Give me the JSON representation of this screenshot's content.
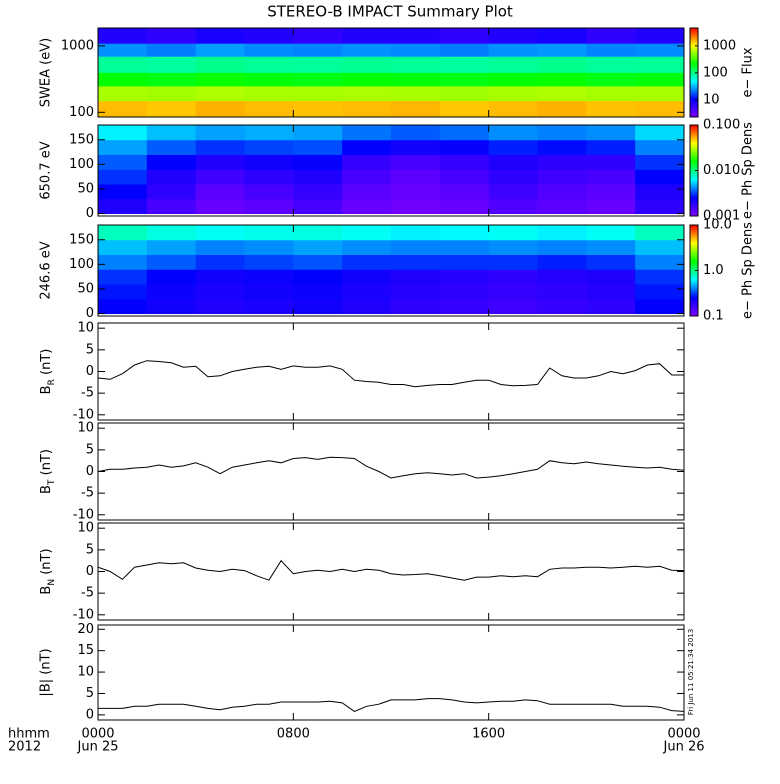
{
  "chart_data": {
    "title": "STEREO-B IMPACT Summary Plot",
    "xlim": [
      0,
      24
    ],
    "xticks": [
      {
        "value": 0,
        "label": "0000"
      },
      {
        "value": 8,
        "label": "0800"
      },
      {
        "value": 16,
        "label": "1600"
      },
      {
        "value": 24,
        "label": "0000"
      }
    ],
    "date_labels": [
      "Jun 25",
      "Jun 26"
    ],
    "axis_legend": [
      "hhmm",
      "2012"
    ],
    "timestamp": "Fri Jun 11 05:21:34 2013",
    "x": [
      0,
      0.5,
      1,
      1.5,
      2,
      2.5,
      3,
      3.5,
      4,
      4.5,
      5,
      5.5,
      6,
      6.5,
      7,
      7.5,
      8,
      8.5,
      9,
      9.5,
      10,
      10.5,
      11,
      11.5,
      12,
      12.5,
      13,
      13.5,
      14,
      14.5,
      15,
      15.5,
      16,
      16.5,
      17,
      17.5,
      18,
      18.5,
      19,
      19.5,
      20,
      20.5,
      21,
      21.5,
      22,
      22.5,
      23,
      23.5,
      24
    ],
    "panels": [
      {
        "type": "heatmap",
        "ylabel": "SWEA (eV)",
        "log": true,
        "ylim": [
          85,
          1860
        ],
        "yticks": [
          100,
          1000
        ],
        "zlabel": "e− Flux",
        "zlog": true,
        "zlim": [
          2.3,
          4600
        ],
        "zticks": [
          10,
          100,
          1000
        ],
        "xbins": [
          0,
          2,
          4,
          6,
          8,
          10,
          12,
          14,
          16,
          18,
          20,
          22,
          24
        ],
        "ybins": [
          85,
          150,
          250,
          400,
          700,
          1100,
          1860
        ],
        "z": [
          [
            1500,
            1400,
            1600,
            1500,
            1450,
            1500,
            1550,
            1400,
            1500,
            1600,
            1450,
            1500
          ],
          [
            600,
            580,
            620,
            600,
            590,
            610,
            600,
            570,
            600,
            620,
            590,
            600
          ],
          [
            220,
            200,
            230,
            210,
            200,
            220,
            210,
            200,
            215,
            225,
            200,
            210
          ],
          [
            90,
            85,
            95,
            90,
            88,
            92,
            90,
            85,
            90,
            95,
            88,
            90
          ],
          [
            25,
            22,
            27,
            24,
            23,
            25,
            24,
            22,
            25,
            26,
            23,
            24
          ],
          [
            7,
            6,
            8,
            7,
            6,
            7,
            7,
            6,
            7,
            8,
            6,
            7
          ]
        ]
      },
      {
        "type": "heatmap",
        "ylabel": "650.7 eV",
        "log": false,
        "ylim": [
          -5,
          180
        ],
        "yticks": [
          0,
          50,
          100,
          150
        ],
        "zlabel": "e− Ph Sp Dens",
        "zlog": true,
        "zlim": [
          0.001,
          0.1
        ],
        "zticks": [
          {
            "value": 0.001,
            "label": "0.001"
          },
          {
            "value": 0.01,
            "label": "0.010"
          },
          {
            "value": 0.1,
            "label": "0.100"
          }
        ],
        "xbins": [
          0,
          2,
          4,
          6,
          8,
          10,
          12,
          14,
          16,
          18,
          20,
          22,
          24
        ],
        "ybins": [
          0,
          30,
          60,
          90,
          120,
          150,
          180
        ],
        "z": [
          [
            0.002,
            0.0015,
            0.0012,
            0.0013,
            0.0015,
            0.0012,
            0.0011,
            0.0012,
            0.0014,
            0.0013,
            0.0012,
            0.0018
          ],
          [
            0.0025,
            0.0018,
            0.0013,
            0.0015,
            0.0017,
            0.0013,
            0.0012,
            0.0013,
            0.0016,
            0.0014,
            0.0013,
            0.002
          ],
          [
            0.003,
            0.002,
            0.0016,
            0.0018,
            0.002,
            0.0015,
            0.0013,
            0.0015,
            0.0018,
            0.0016,
            0.0015,
            0.0025
          ],
          [
            0.0035,
            0.0025,
            0.002,
            0.0022,
            0.0024,
            0.0017,
            0.0015,
            0.0017,
            0.002,
            0.0018,
            0.0018,
            0.003
          ],
          [
            0.0045,
            0.0035,
            0.003,
            0.0032,
            0.0033,
            0.0025,
            0.0022,
            0.0024,
            0.0028,
            0.0026,
            0.0028,
            0.004
          ],
          [
            0.006,
            0.005,
            0.0045,
            0.0047,
            0.0045,
            0.0038,
            0.0035,
            0.0037,
            0.0042,
            0.004,
            0.0042,
            0.0055
          ]
        ]
      },
      {
        "type": "heatmap",
        "ylabel": "246.6 eV",
        "log": false,
        "ylim": [
          -5,
          180
        ],
        "yticks": [
          0,
          50,
          100,
          150
        ],
        "zlabel": "e− Ph Sp Dens",
        "zlog": true,
        "zlim": [
          0.1,
          10
        ],
        "zticks": [
          {
            "value": 0.1,
            "label": "0.1"
          },
          {
            "value": 1,
            "label": "1.0"
          },
          {
            "value": 10,
            "label": "10.0"
          }
        ],
        "xbins": [
          0,
          2,
          4,
          6,
          8,
          10,
          12,
          14,
          16,
          18,
          20,
          22,
          24
        ],
        "ybins": [
          0,
          30,
          60,
          90,
          120,
          150,
          180
        ],
        "z": [
          [
            0.25,
            0.22,
            0.2,
            0.21,
            0.22,
            0.2,
            0.18,
            0.17,
            0.16,
            0.17,
            0.18,
            0.25
          ],
          [
            0.27,
            0.23,
            0.21,
            0.22,
            0.23,
            0.21,
            0.19,
            0.18,
            0.17,
            0.18,
            0.19,
            0.27
          ],
          [
            0.3,
            0.25,
            0.22,
            0.23,
            0.25,
            0.22,
            0.2,
            0.19,
            0.18,
            0.19,
            0.2,
            0.3
          ],
          [
            0.4,
            0.35,
            0.3,
            0.32,
            0.34,
            0.3,
            0.3,
            0.3,
            0.3,
            0.28,
            0.3,
            0.4
          ],
          [
            0.5,
            0.45,
            0.4,
            0.42,
            0.45,
            0.42,
            0.4,
            0.4,
            0.42,
            0.4,
            0.42,
            0.5
          ],
          [
            0.8,
            0.7,
            0.65,
            0.68,
            0.7,
            0.65,
            0.6,
            0.62,
            0.65,
            0.6,
            0.65,
            0.8
          ]
        ]
      },
      {
        "type": "line",
        "ylabel": {
          "main": "B",
          "sub": "R",
          "unit": " (nT)"
        },
        "ylim": [
          -11.2,
          11.2
        ],
        "yticks": [
          -10,
          -5,
          0,
          5,
          10
        ],
        "color": "#000000",
        "values": [
          -1.5,
          -1.8,
          -0.5,
          1.5,
          2.5,
          2.3,
          2,
          1,
          1.2,
          -1.2,
          -1,
          0,
          0.5,
          1,
          1.2,
          0.5,
          1.3,
          1,
          1,
          1.3,
          0.5,
          -2,
          -2.3,
          -2.5,
          -3,
          -3,
          -3.5,
          -3.2,
          -3,
          -3,
          -2.5,
          -2,
          -2,
          -3,
          -3.3,
          -3.2,
          -3,
          0.8,
          -1,
          -1.5,
          -1.5,
          -1,
          0,
          -0.5,
          0.2,
          1.5,
          1.8,
          -0.8,
          -0.8
        ]
      },
      {
        "type": "line",
        "ylabel": {
          "main": "B",
          "sub": "T",
          "unit": " (nT)"
        },
        "ylim": [
          -11.2,
          11.2
        ],
        "yticks": [
          -10,
          -5,
          0,
          5,
          10
        ],
        "color": "#000000",
        "values": [
          0,
          0.5,
          0.5,
          0.8,
          1,
          1.5,
          1,
          1.3,
          2,
          1,
          -0.5,
          1,
          1.5,
          2,
          2.5,
          2,
          3,
          3.2,
          2.8,
          3.3,
          3.2,
          3,
          1.2,
          0,
          -1.5,
          -1,
          -0.5,
          -0.3,
          -0.5,
          -0.8,
          -0.5,
          -1.5,
          -1.3,
          -1,
          -0.5,
          0,
          0.5,
          2.5,
          2,
          1.8,
          2.2,
          1.8,
          1.5,
          1.2,
          1,
          0.8,
          1,
          0.5,
          0.3
        ]
      },
      {
        "type": "line",
        "ylabel": {
          "main": "B",
          "sub": "N",
          "unit": " (nT)"
        },
        "ylim": [
          -11.2,
          11.2
        ],
        "yticks": [
          -10,
          -5,
          0,
          5,
          10
        ],
        "color": "#000000",
        "values": [
          1,
          0,
          -1.8,
          1,
          1.5,
          2,
          1.8,
          2,
          0.8,
          0.3,
          0,
          0.5,
          0.2,
          -1,
          -2,
          2.5,
          -0.5,
          0,
          0.3,
          0,
          0.5,
          0,
          0.5,
          0.3,
          -0.5,
          -0.8,
          -0.7,
          -0.5,
          -1,
          -1.5,
          -2,
          -1.3,
          -1.3,
          -1,
          -1.2,
          -1,
          -1.2,
          0.5,
          0.8,
          0.8,
          1,
          1,
          0.8,
          1,
          1.2,
          1,
          1.2,
          0.3,
          0.2
        ]
      },
      {
        "type": "line",
        "ylabel": "|B| (nT)",
        "ylim": [
          -1.2,
          21
        ],
        "yticks": [
          0,
          5,
          10,
          15,
          20
        ],
        "color": "#000000",
        "values": [
          1.5,
          1.5,
          1.5,
          2,
          2,
          2.5,
          2.5,
          2.5,
          2,
          1.5,
          1.2,
          1.8,
          2,
          2.5,
          2.5,
          3,
          3,
          3,
          3,
          3.2,
          2.8,
          0.8,
          2,
          2.5,
          3.5,
          3.5,
          3.5,
          3.8,
          3.8,
          3.5,
          3,
          2.8,
          3,
          3.2,
          3.2,
          3.5,
          3.3,
          2.5,
          2.5,
          2.5,
          2.5,
          2.5,
          2.5,
          2,
          2,
          2,
          1.8,
          1,
          0.8
        ]
      }
    ]
  }
}
